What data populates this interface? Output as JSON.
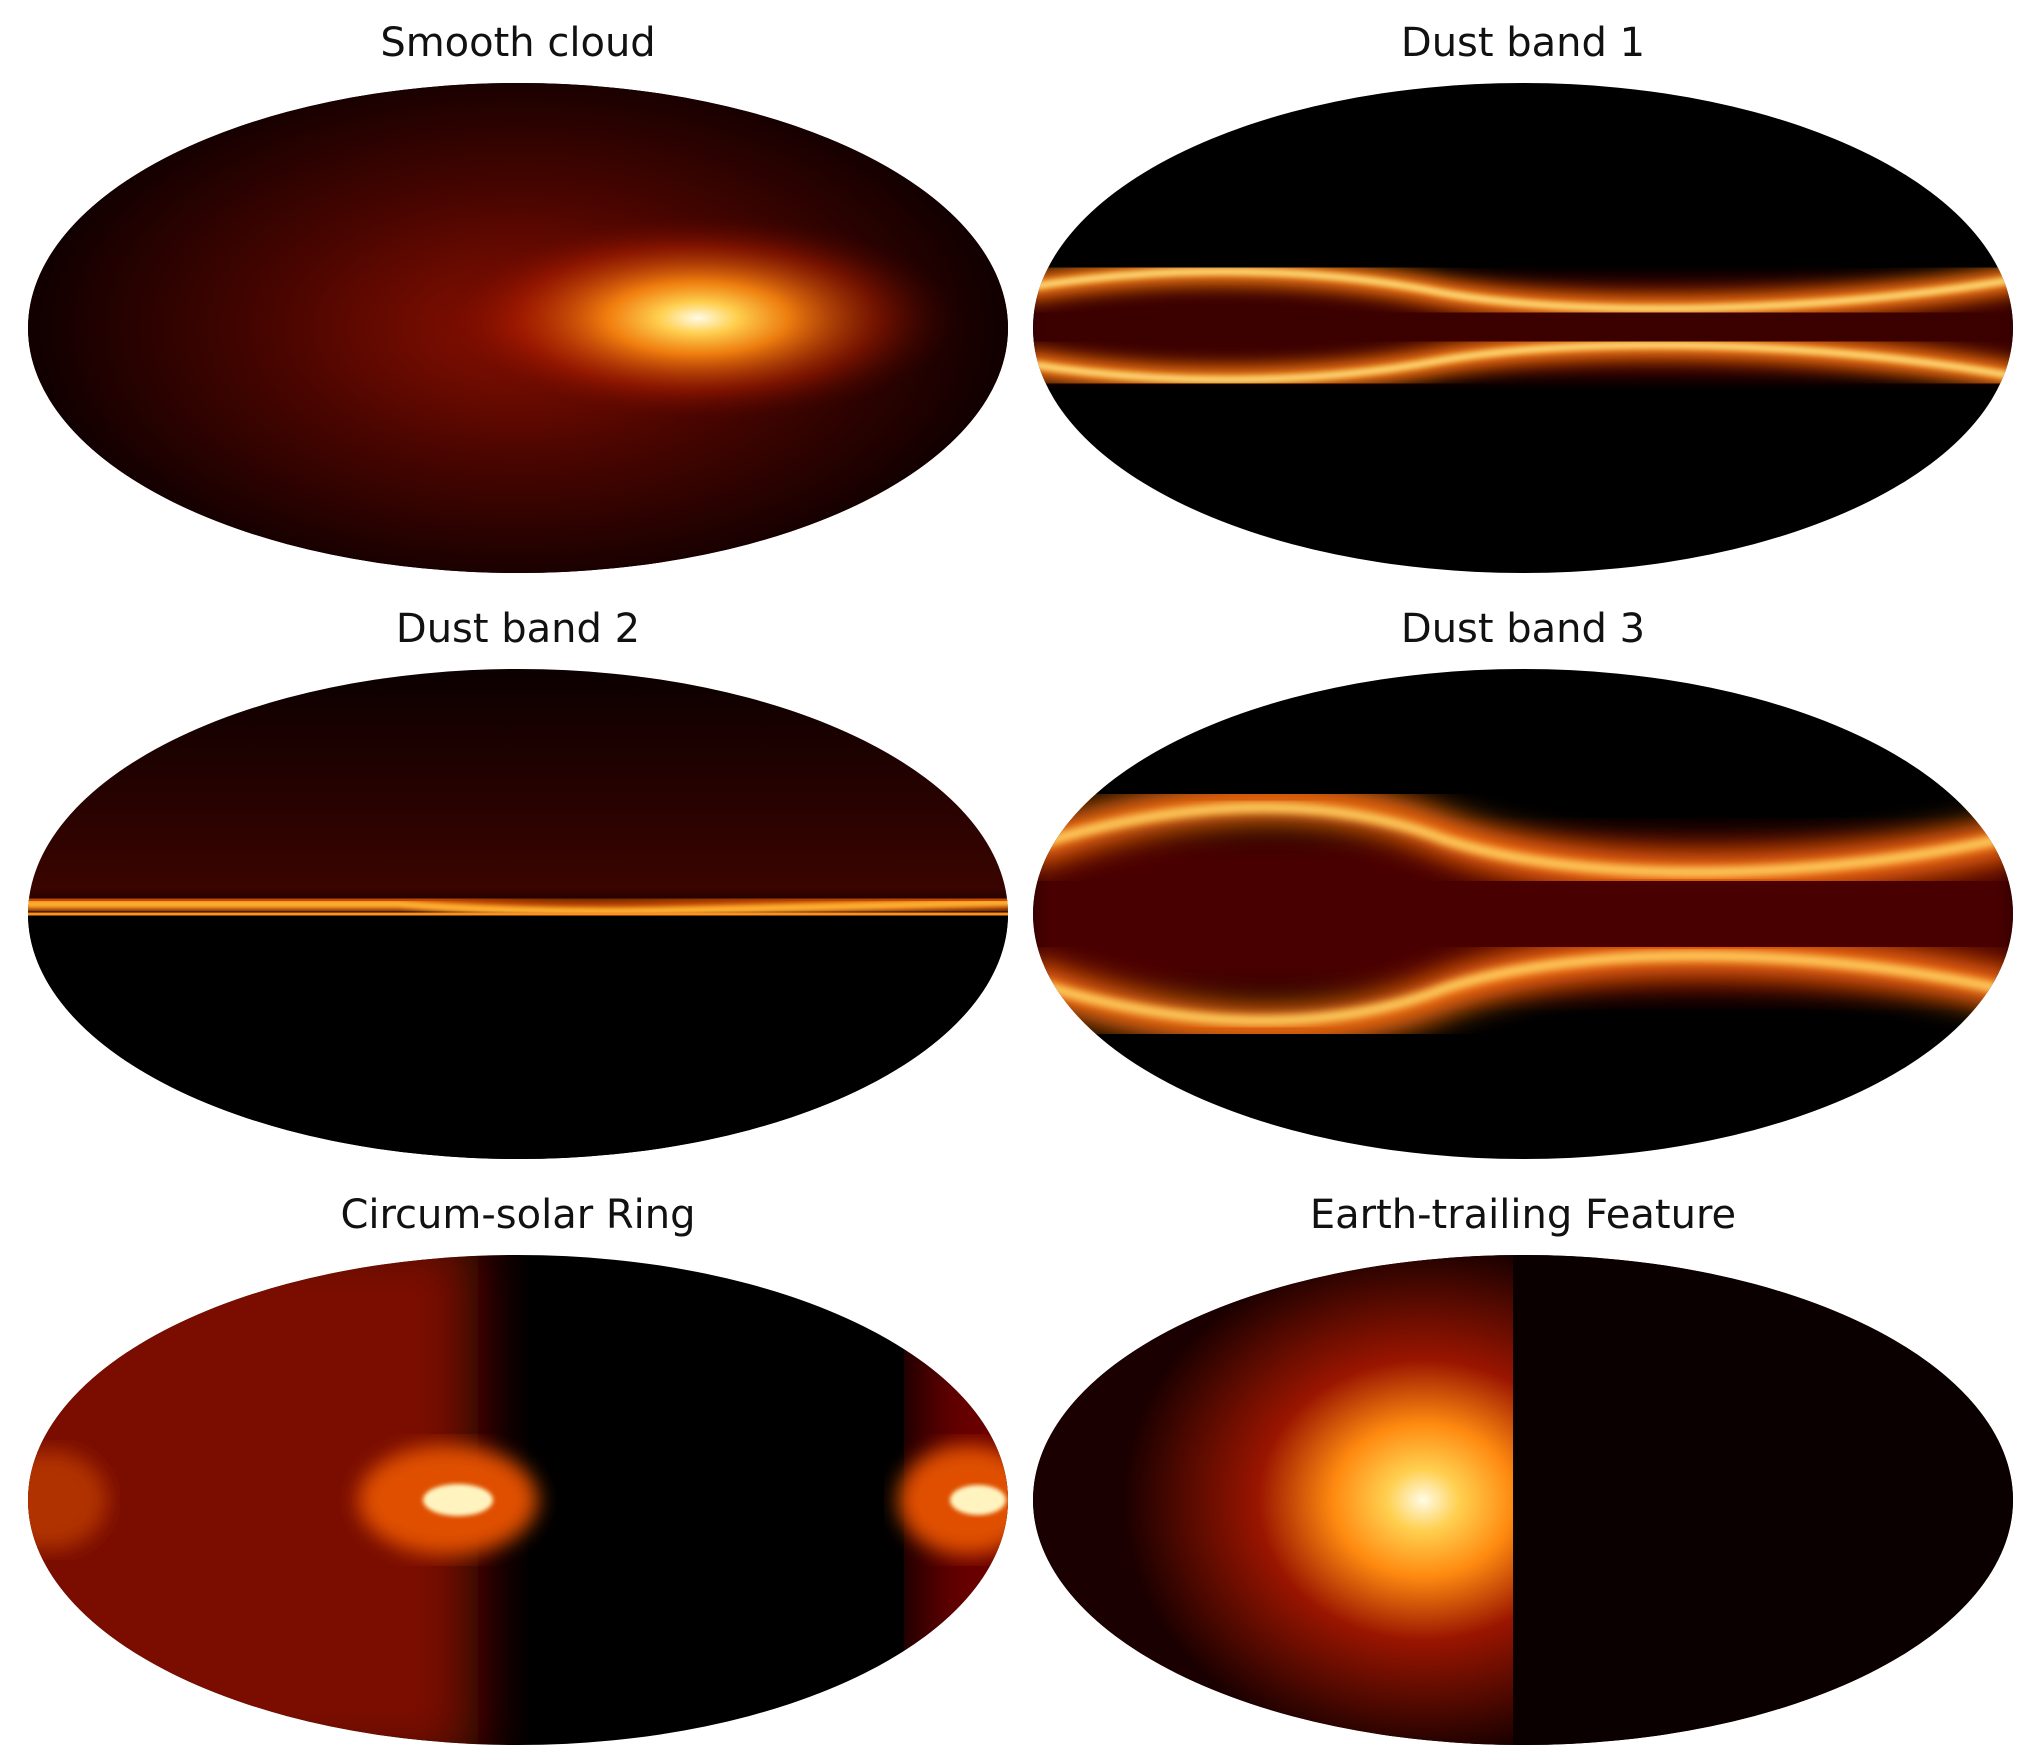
{
  "figure": {
    "colormap": "afmhot",
    "colors": {
      "low": "#000000",
      "mid": "#8a0a00",
      "high_orange": "#ff8c1a",
      "peak": "#fffbe6",
      "background": "#ffffff"
    },
    "panels": [
      {
        "id": "smooth-cloud",
        "title": "Smooth cloud"
      },
      {
        "id": "dust-band-1",
        "title": "Dust band 1"
      },
      {
        "id": "dust-band-2",
        "title": "Dust band 2"
      },
      {
        "id": "dust-band-3",
        "title": "Dust band 3"
      },
      {
        "id": "circum-solar-ring",
        "title": "Circum-solar Ring"
      },
      {
        "id": "earth-trailing-feature",
        "title": "Earth-trailing Feature"
      }
    ]
  }
}
